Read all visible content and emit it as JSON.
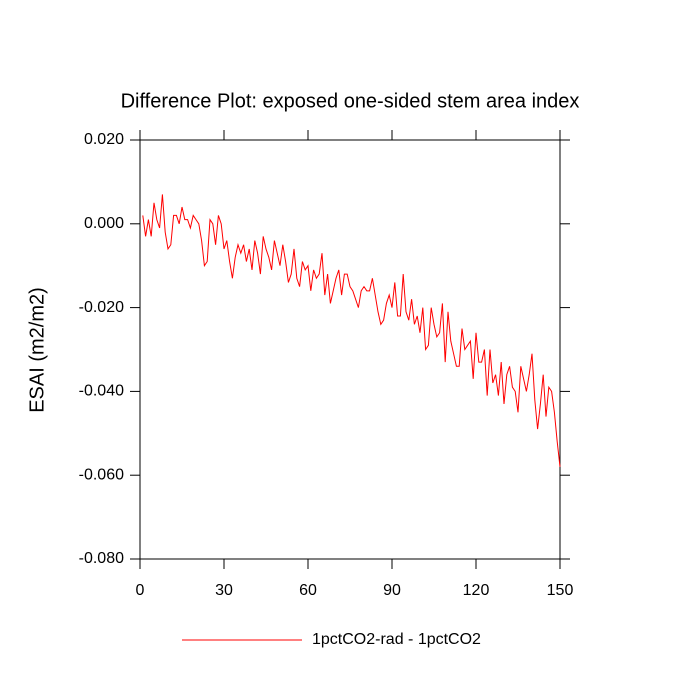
{
  "chart_data": {
    "type": "line",
    "title": "Difference Plot: exposed one-sided stem area index",
    "y_label": "ESAI  (m2/m2)",
    "x": [
      1,
      2,
      3,
      4,
      5,
      6,
      7,
      8,
      9,
      10,
      11,
      12,
      13,
      14,
      15,
      16,
      17,
      18,
      19,
      20,
      21,
      22,
      23,
      24,
      25,
      26,
      27,
      28,
      29,
      30,
      31,
      32,
      33,
      34,
      35,
      36,
      37,
      38,
      39,
      40,
      41,
      42,
      43,
      44,
      45,
      46,
      47,
      48,
      49,
      50,
      51,
      52,
      53,
      54,
      55,
      56,
      57,
      58,
      59,
      60,
      61,
      62,
      63,
      64,
      65,
      66,
      67,
      68,
      69,
      70,
      71,
      72,
      73,
      74,
      75,
      76,
      77,
      78,
      79,
      80,
      81,
      82,
      83,
      84,
      85,
      86,
      87,
      88,
      89,
      90,
      91,
      92,
      93,
      94,
      95,
      96,
      97,
      98,
      99,
      100,
      101,
      102,
      103,
      104,
      105,
      106,
      107,
      108,
      109,
      110,
      111,
      112,
      113,
      114,
      115,
      116,
      117,
      118,
      119,
      120,
      121,
      122,
      123,
      124,
      125,
      126,
      127,
      128,
      129,
      130,
      131,
      132,
      133,
      134,
      135,
      136,
      137,
      138,
      139,
      140,
      141,
      142,
      143,
      144,
      145,
      146,
      147,
      148,
      149,
      150
    ],
    "series": [
      {
        "name": "1pctCO2-rad - 1pctCO2",
        "color": "#ff0000",
        "values": [
          0.002,
          -0.003,
          0.001,
          -0.003,
          0.005,
          0.001,
          -0.001,
          0.007,
          -0.002,
          -0.006,
          -0.005,
          0.002,
          0.002,
          0.0,
          0.004,
          0.001,
          0.001,
          -0.001,
          0.002,
          0.001,
          0.0,
          -0.004,
          -0.01,
          -0.009,
          0.001,
          0.0,
          -0.005,
          0.002,
          0.0,
          -0.006,
          -0.004,
          -0.009,
          -0.013,
          -0.008,
          -0.005,
          -0.007,
          -0.005,
          -0.009,
          -0.006,
          -0.011,
          -0.004,
          -0.007,
          -0.012,
          -0.003,
          -0.006,
          -0.008,
          -0.011,
          -0.004,
          -0.007,
          -0.01,
          -0.005,
          -0.009,
          -0.014,
          -0.012,
          -0.006,
          -0.013,
          -0.015,
          -0.009,
          -0.011,
          -0.01,
          -0.016,
          -0.011,
          -0.013,
          -0.012,
          -0.007,
          -0.017,
          -0.012,
          -0.019,
          -0.016,
          -0.013,
          -0.011,
          -0.017,
          -0.012,
          -0.012,
          -0.015,
          -0.016,
          -0.018,
          -0.02,
          -0.016,
          -0.015,
          -0.016,
          -0.016,
          -0.013,
          -0.017,
          -0.021,
          -0.024,
          -0.023,
          -0.019,
          -0.017,
          -0.02,
          -0.014,
          -0.022,
          -0.022,
          -0.012,
          -0.021,
          -0.023,
          -0.018,
          -0.024,
          -0.022,
          -0.026,
          -0.02,
          -0.03,
          -0.029,
          -0.02,
          -0.024,
          -0.027,
          -0.026,
          -0.019,
          -0.033,
          -0.021,
          -0.028,
          -0.031,
          -0.034,
          -0.034,
          -0.025,
          -0.03,
          -0.029,
          -0.028,
          -0.037,
          -0.026,
          -0.033,
          -0.033,
          -0.03,
          -0.041,
          -0.03,
          -0.038,
          -0.036,
          -0.041,
          -0.033,
          -0.043,
          -0.036,
          -0.034,
          -0.039,
          -0.04,
          -0.045,
          -0.034,
          -0.037,
          -0.04,
          -0.036,
          -0.031,
          -0.042,
          -0.049,
          -0.043,
          -0.036,
          -0.046,
          -0.039,
          -0.04,
          -0.045,
          -0.052,
          -0.058
        ]
      }
    ],
    "xlim": [
      0,
      150
    ],
    "xticks": [
      0,
      30,
      60,
      90,
      120,
      150
    ],
    "ylim": [
      -0.08,
      0.02
    ],
    "yticks": [
      {
        "value": -0.08,
        "label": "-0.080"
      },
      {
        "value": -0.06,
        "label": "-0.060"
      },
      {
        "value": -0.04,
        "label": "-0.040"
      },
      {
        "value": -0.02,
        "label": "-0.020"
      },
      {
        "value": 0,
        "label": "0.000"
      },
      {
        "value": 0.02,
        "label": "0.020"
      }
    ],
    "legend": "bottom"
  }
}
